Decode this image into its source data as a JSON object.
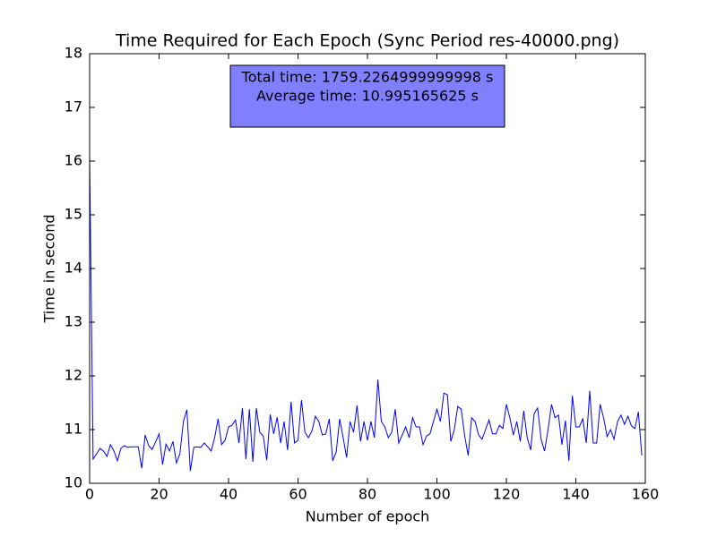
{
  "chart_data": {
    "type": "line",
    "title": "Time Required for Each Epoch (Sync Period res-40000.png)",
    "xlabel": "Number of epoch",
    "ylabel": "Time in second",
    "annotations": [
      "Total time: 1759.2264999999998 s",
      "Average time: 10.995165625 s"
    ],
    "x": [
      0,
      1,
      2,
      3,
      4,
      5,
      6,
      7,
      8,
      9,
      10,
      11,
      12,
      13,
      14,
      15,
      16,
      17,
      18,
      19,
      20,
      21,
      22,
      23,
      24,
      25,
      26,
      27,
      28,
      29,
      30,
      31,
      32,
      33,
      34,
      35,
      36,
      37,
      38,
      39,
      40,
      41,
      42,
      43,
      44,
      45,
      46,
      47,
      48,
      49,
      50,
      51,
      52,
      53,
      54,
      55,
      56,
      57,
      58,
      59,
      60,
      61,
      62,
      63,
      64,
      65,
      66,
      67,
      68,
      69,
      70,
      71,
      72,
      73,
      74,
      75,
      76,
      77,
      78,
      79,
      80,
      81,
      82,
      83,
      84,
      85,
      86,
      87,
      88,
      89,
      90,
      91,
      92,
      93,
      94,
      95,
      96,
      97,
      98,
      99,
      100,
      101,
      102,
      103,
      104,
      105,
      106,
      107,
      108,
      109,
      110,
      111,
      112,
      113,
      114,
      115,
      116,
      117,
      118,
      119,
      120,
      121,
      122,
      123,
      124,
      125,
      126,
      127,
      128,
      129,
      130,
      131,
      132,
      133,
      134,
      135,
      136,
      137,
      138,
      139,
      140,
      141,
      142,
      143,
      144,
      145,
      146,
      147,
      148,
      149,
      150,
      151,
      152,
      153,
      154,
      155,
      156,
      157,
      158,
      159
    ],
    "series": [
      {
        "color": "#0000ff",
        "values": [
          16.08,
          10.45,
          10.55,
          10.65,
          10.6,
          10.5,
          10.72,
          10.6,
          10.42,
          10.65,
          10.7,
          10.67,
          10.68,
          10.68,
          10.68,
          10.28,
          10.9,
          10.7,
          10.63,
          10.77,
          10.92,
          10.35,
          10.73,
          10.6,
          10.78,
          10.38,
          10.55,
          11.15,
          11.37,
          10.23,
          10.67,
          10.68,
          10.67,
          10.75,
          10.68,
          10.6,
          10.85,
          11.2,
          10.72,
          10.8,
          11.05,
          11.08,
          11.18,
          10.75,
          11.4,
          10.45,
          11.38,
          10.4,
          11.4,
          10.95,
          10.88,
          10.43,
          11.28,
          10.92,
          11.23,
          10.75,
          11.15,
          10.62,
          11.52,
          10.75,
          10.8,
          11.55,
          10.95,
          10.85,
          10.97,
          11.25,
          11.15,
          10.9,
          10.92,
          11.2,
          10.42,
          10.58,
          11.2,
          10.85,
          10.48,
          11.15,
          10.95,
          11.45,
          10.78,
          11.15,
          10.8,
          11.15,
          10.85,
          11.93,
          11.15,
          11.05,
          10.85,
          10.95,
          11.38,
          10.75,
          10.9,
          11.05,
          10.85,
          11.22,
          11.05,
          11.05,
          10.72,
          10.88,
          10.92,
          11.15,
          11.38,
          11.15,
          11.68,
          11.65,
          10.78,
          11.0,
          11.43,
          11.38,
          10.88,
          10.52,
          11.22,
          11.15,
          10.9,
          10.82,
          11.0,
          11.18,
          10.92,
          10.92,
          11.08,
          11.02,
          11.47,
          11.22,
          10.9,
          11.15,
          10.78,
          11.35,
          10.85,
          10.62,
          11.3,
          11.4,
          10.82,
          10.6,
          11.0,
          11.47,
          11.22,
          11.27,
          10.72,
          11.17,
          10.42,
          11.63,
          11.05,
          11.05,
          11.2,
          10.75,
          11.72,
          10.75,
          10.75,
          11.47,
          11.22,
          10.87,
          11.0,
          10.82,
          11.15,
          11.27,
          11.1,
          11.25,
          11.07,
          11.02,
          11.33,
          10.52
        ]
      }
    ],
    "xlim": [
      0,
      160
    ],
    "xticks": [
      0,
      20,
      40,
      60,
      80,
      100,
      120,
      140,
      160
    ],
    "ylim": [
      10,
      18
    ],
    "yticks": [
      10,
      11,
      12,
      13,
      14,
      15,
      16,
      17,
      18
    ],
    "grid": false
  }
}
